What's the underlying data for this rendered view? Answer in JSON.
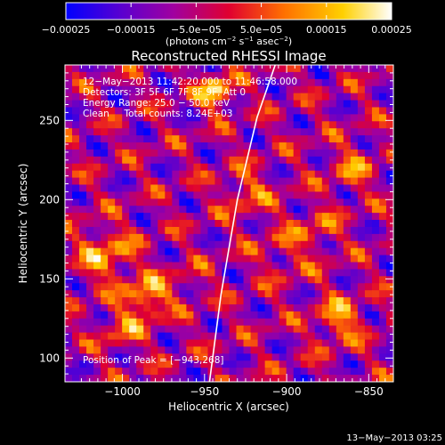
{
  "chart_data": {
    "type": "heatmap",
    "title": "Reconstructed RHESSI Image",
    "xlabel": "Heliocentric X (arcsec)",
    "ylabel": "Heliocentric Y (arcsec)",
    "xlim": [
      -1035,
      -835
    ],
    "ylim": [
      85,
      285
    ],
    "x_ticks": [
      -1000,
      -950,
      -900,
      -850
    ],
    "x_tick_labels": [
      "−1000",
      "−950",
      "−900",
      "−850"
    ],
    "y_ticks": [
      100,
      150,
      200,
      250
    ],
    "y_tick_labels": [
      "100",
      "150",
      "200",
      "250"
    ],
    "colorbar": {
      "range": [
        -0.00025,
        0.00025
      ],
      "ticks": [
        -0.00025,
        -0.00015,
        -5e-05,
        5e-05,
        0.00015,
        0.00025
      ],
      "tick_labels": [
        "−0.00025",
        "−0.00015",
        "−5.0e−05",
        "5.0e−05",
        "0.00015",
        "0.00025"
      ],
      "colors": [
        "#0000ff",
        "#5a00d0",
        "#a000a0",
        "#e00030",
        "#ff7000",
        "#ffd000",
        "#ffffff"
      ]
    },
    "units_label": {
      "prefix": "(photons cm",
      "exp1": "−2",
      "mid": " s",
      "exp2": "−1",
      "mid2": " asec",
      "exp3": "−2",
      "suffix": ")"
    },
    "annotations": [
      "12−May−2013 11:42:20.000 to 11:46:58.000",
      "Detectors: 3F 5F 6F 7F 8F 9F, Att 0",
      "Energy Range: 25.0 − 50.0 keV",
      "Clean     Total counts: 8.24E+03"
    ],
    "peak_label": "Position of Peak = [−943,268]",
    "peak_position": [
      -943,
      268
    ],
    "limb_curve": [
      [
        -947,
        85
      ],
      [
        -940,
        140
      ],
      [
        -930,
        200
      ],
      [
        -918,
        252
      ],
      [
        -907,
        285
      ]
    ],
    "grid": false,
    "legend": "none"
  },
  "footer_timestamp": "13−May−2013 03:25"
}
